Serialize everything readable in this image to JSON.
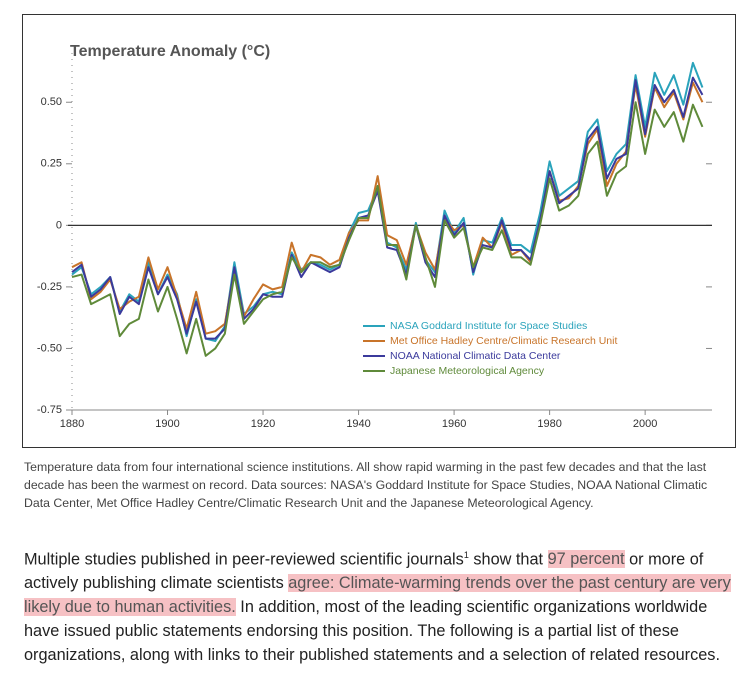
{
  "chart_data": {
    "type": "line",
    "title": "Temperature Anomaly (°C)",
    "x": [
      1880,
      1882,
      1884,
      1886,
      1888,
      1890,
      1892,
      1894,
      1896,
      1898,
      1900,
      1902,
      1904,
      1906,
      1908,
      1910,
      1912,
      1914,
      1916,
      1918,
      1920,
      1922,
      1924,
      1926,
      1928,
      1930,
      1932,
      1934,
      1936,
      1938,
      1940,
      1942,
      1944,
      1946,
      1948,
      1950,
      1952,
      1954,
      1956,
      1958,
      1960,
      1962,
      1964,
      1966,
      1968,
      1970,
      1972,
      1974,
      1976,
      1978,
      1980,
      1982,
      1984,
      1986,
      1988,
      1990,
      1992,
      1994,
      1996,
      1998,
      2000,
      2002,
      2004,
      2006,
      2008,
      2010,
      2012
    ],
    "series": [
      {
        "name": "NASA Goddard Institute for Space Studies",
        "color": "#2aa3bb",
        "values": [
          -0.2,
          -0.17,
          -0.28,
          -0.25,
          -0.21,
          -0.35,
          -0.28,
          -0.31,
          -0.15,
          -0.28,
          -0.2,
          -0.28,
          -0.45,
          -0.3,
          -0.46,
          -0.47,
          -0.41,
          -0.15,
          -0.36,
          -0.33,
          -0.28,
          -0.27,
          -0.28,
          -0.11,
          -0.18,
          -0.15,
          -0.16,
          -0.18,
          -0.16,
          -0.03,
          0.05,
          0.06,
          0.15,
          -0.07,
          -0.09,
          -0.18,
          0.01,
          -0.14,
          -0.19,
          0.06,
          -0.03,
          0.03,
          -0.2,
          -0.06,
          -0.07,
          0.03,
          -0.08,
          -0.08,
          -0.11,
          0.05,
          0.26,
          0.12,
          0.15,
          0.18,
          0.38,
          0.43,
          0.22,
          0.29,
          0.33,
          0.61,
          0.4,
          0.62,
          0.53,
          0.61,
          0.49,
          0.66,
          0.56
        ]
      },
      {
        "name": "Met Office Hadley Centre/Climatic Research Unit",
        "color": "#c8742a",
        "values": [
          -0.17,
          -0.15,
          -0.3,
          -0.27,
          -0.22,
          -0.34,
          -0.31,
          -0.29,
          -0.13,
          -0.26,
          -0.17,
          -0.29,
          -0.42,
          -0.27,
          -0.44,
          -0.43,
          -0.4,
          -0.18,
          -0.37,
          -0.3,
          -0.24,
          -0.26,
          -0.25,
          -0.07,
          -0.19,
          -0.12,
          -0.13,
          -0.16,
          -0.14,
          -0.03,
          0.02,
          0.02,
          0.2,
          -0.04,
          -0.06,
          -0.16,
          0.0,
          -0.11,
          -0.18,
          0.03,
          -0.02,
          0.0,
          -0.17,
          -0.05,
          -0.09,
          0.01,
          -0.12,
          -0.1,
          -0.15,
          0.01,
          0.22,
          0.1,
          0.11,
          0.16,
          0.33,
          0.39,
          0.16,
          0.25,
          0.3,
          0.57,
          0.36,
          0.56,
          0.48,
          0.54,
          0.43,
          0.58,
          0.5
        ]
      },
      {
        "name": "NOAA National Climatic Data Center",
        "color": "#3b3a9c",
        "values": [
          -0.19,
          -0.16,
          -0.29,
          -0.26,
          -0.21,
          -0.36,
          -0.29,
          -0.32,
          -0.17,
          -0.28,
          -0.21,
          -0.3,
          -0.44,
          -0.31,
          -0.46,
          -0.46,
          -0.42,
          -0.17,
          -0.38,
          -0.34,
          -0.28,
          -0.29,
          -0.29,
          -0.12,
          -0.21,
          -0.15,
          -0.17,
          -0.19,
          -0.17,
          -0.05,
          0.03,
          0.04,
          0.14,
          -0.09,
          -0.1,
          -0.2,
          0.0,
          -0.15,
          -0.21,
          0.04,
          -0.04,
          0.01,
          -0.19,
          -0.08,
          -0.09,
          0.02,
          -0.1,
          -0.1,
          -0.14,
          0.02,
          0.22,
          0.09,
          0.12,
          0.15,
          0.35,
          0.4,
          0.19,
          0.27,
          0.29,
          0.59,
          0.37,
          0.57,
          0.5,
          0.55,
          0.44,
          0.6,
          0.53
        ]
      },
      {
        "name": "Japanese Meteorological Agency",
        "color": "#5f8a3a",
        "values": [
          -0.21,
          -0.2,
          -0.32,
          -0.3,
          -0.28,
          -0.45,
          -0.4,
          -0.38,
          -0.22,
          -0.35,
          -0.25,
          -0.38,
          -0.52,
          -0.38,
          -0.53,
          -0.5,
          -0.44,
          -0.2,
          -0.4,
          -0.35,
          -0.3,
          -0.28,
          -0.27,
          -0.13,
          -0.19,
          -0.15,
          -0.15,
          -0.17,
          -0.16,
          -0.06,
          0.03,
          0.03,
          0.16,
          -0.08,
          -0.08,
          -0.22,
          0.0,
          -0.13,
          -0.25,
          0.02,
          -0.05,
          -0.01,
          -0.17,
          -0.09,
          -0.1,
          -0.02,
          -0.13,
          -0.13,
          -0.16,
          0.0,
          0.19,
          0.06,
          0.08,
          0.12,
          0.29,
          0.34,
          0.12,
          0.21,
          0.24,
          0.5,
          0.29,
          0.47,
          0.4,
          0.46,
          0.34,
          0.49,
          0.4
        ]
      }
    ],
    "xlim": [
      1880,
      2014
    ],
    "xticks": [
      1880,
      1900,
      1920,
      1940,
      1960,
      1980,
      2000
    ],
    "ylim": [
      -0.75,
      0.7
    ],
    "yticks": [
      -0.75,
      {
        "value": -0.5,
        "label": "-0.50"
      },
      -0.25,
      0,
      0.25,
      {
        "value": 0.5,
        "label": "0.50"
      }
    ],
    "legend": "lower right"
  },
  "caption": "Temperature data from four international science institutions. All show rapid warming in the past few decades and that the last decade has been the warmest on record. Data sources: NASA's Goddard Institute for Space Studies, NOAA National Climatic Data Center, Met Office Hadley Centre/Climatic Research Unit and the Japanese Meteorological Agency.",
  "paragraph": {
    "text_1": "Multiple studies published in peer-reviewed scientific journals",
    "footnote": "1",
    "text_2": " show that ",
    "highlight_1": "97 percent",
    "text_3": " or more of actively publishing climate scientists ",
    "highlight_2": "agree: Climate-warming trends over the past century are very likely due to human activities.",
    "text_4": " In addition, most of the leading scientific organizations worldwide have issued public statements endorsing this position. The following is a partial list of these organizations, along with links to their published statements and a selection of related resources."
  }
}
